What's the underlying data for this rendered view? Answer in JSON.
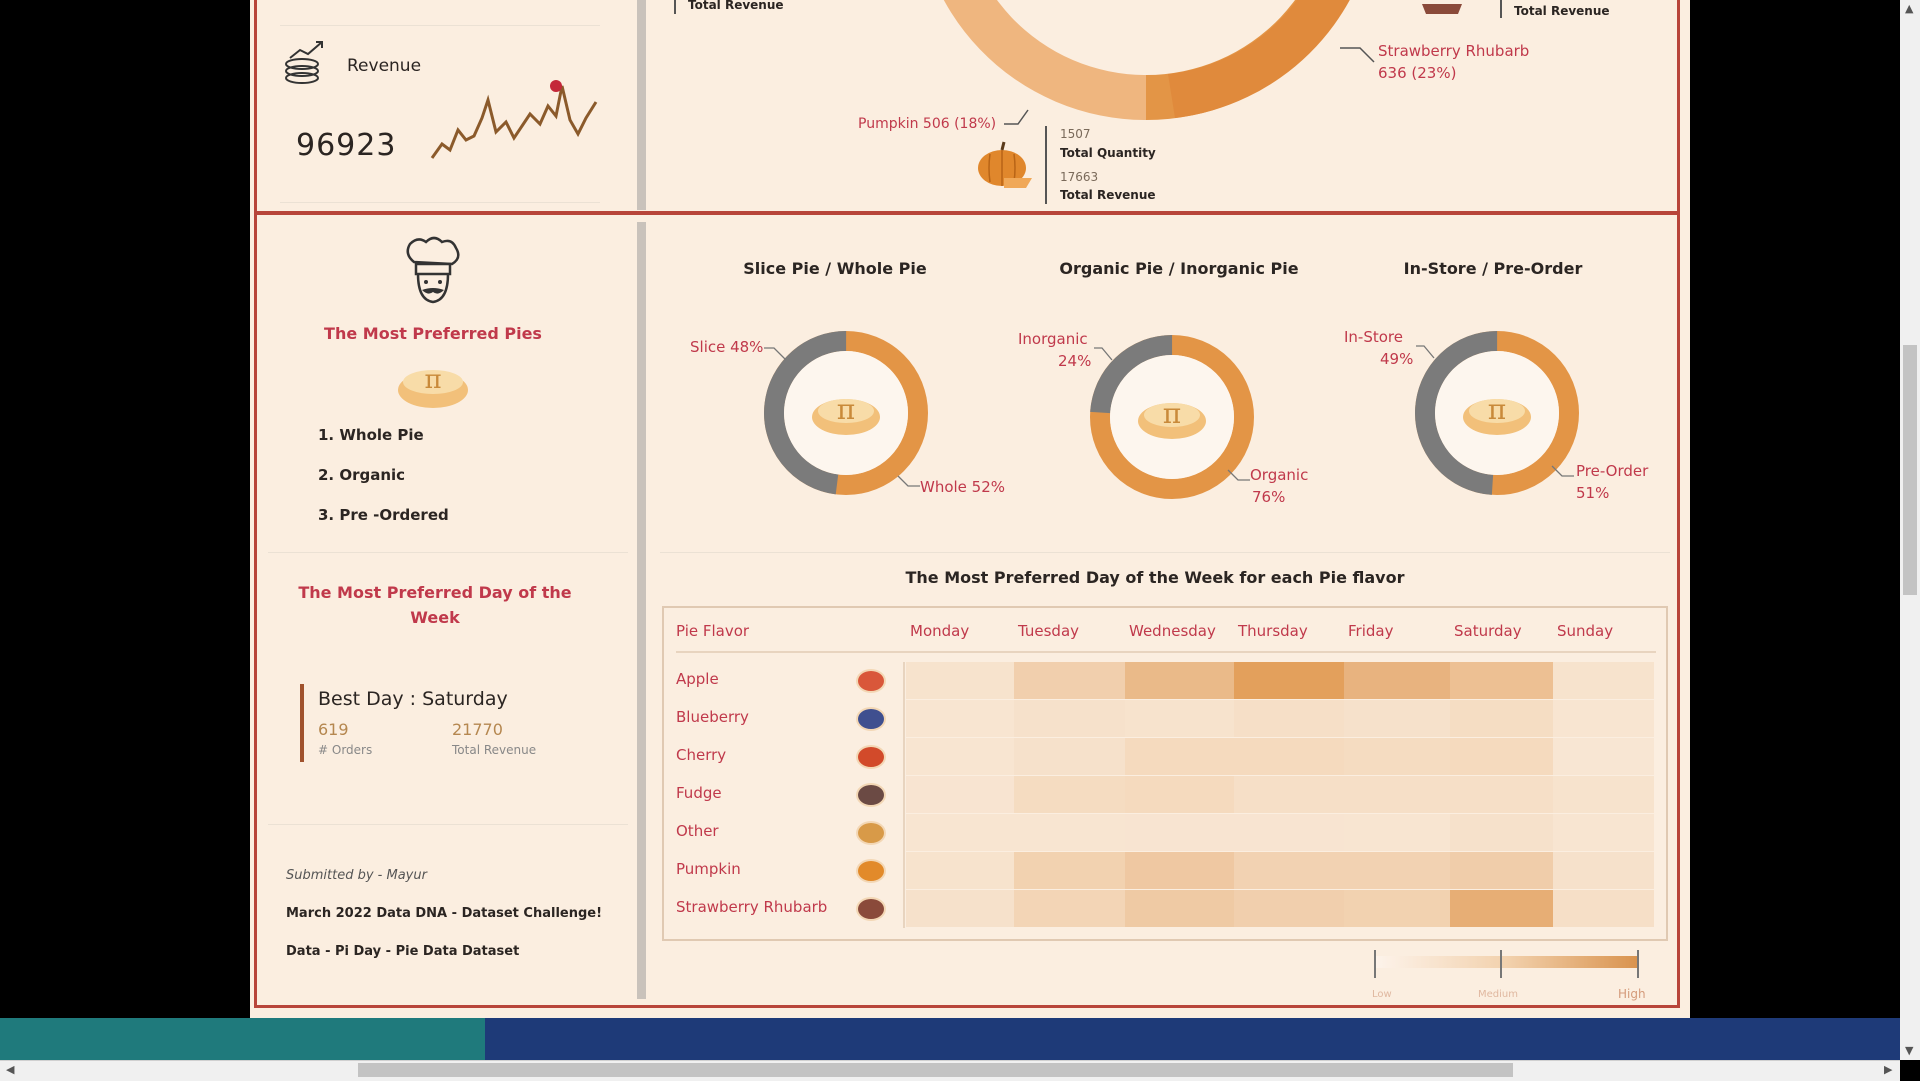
{
  "top": {
    "total_revenue_label_left": "Total Revenue",
    "total_revenue_label_right": "Total Revenue",
    "revenue_kpi_label": "Revenue",
    "revenue_kpi_value": "96923",
    "strawberry_label": "Strawberry Rhubarb",
    "strawberry_value": "636 (23%)",
    "pumpkin_label": "Pumpkin 506 (18%)",
    "pumpkin_qty": "1507",
    "pumpkin_qty_label": "Total Quantity",
    "pumpkin_rev": "17663",
    "pumpkin_rev_label": "Total Revenue"
  },
  "left": {
    "preferred_pies_title": "The Most Preferred Pies",
    "ranks": [
      "1.  Whole Pie",
      "2.  Organic",
      "3.  Pre -Ordered"
    ],
    "preferred_day_title": "The Most Preferred Day of the Week",
    "best_day": "Best Day : Saturday",
    "orders_value": "619",
    "orders_label": "# Orders",
    "revenue_value": "21770",
    "revenue_label": "Total Revenue",
    "submitted_by": "Submitted by  - Mayur",
    "challenge": "March 2022 Data DNA - Dataset Challenge!",
    "dataset": "Data - Pi Day - Pie Data Dataset"
  },
  "donuts": [
    {
      "title": "Slice Pie / Whole Pie",
      "label_a": "Slice 48%",
      "label_b": "Whole 52%",
      "gray_pct": 48
    },
    {
      "title": "Organic Pie / Inorganic Pie",
      "label_a1": "Inorganic",
      "label_a2": "24%",
      "label_b1": "Organic",
      "label_b2": "76%",
      "gray_pct": 24
    },
    {
      "title": "In-Store / Pre-Order",
      "label_a1": "In-Store",
      "label_a2": "49%",
      "label_b1": "Pre-Order",
      "label_b2": "51%",
      "gray_pct": 49
    }
  ],
  "heatmap": {
    "title": "The Most Preferred Day of the Week for each Pie flavor",
    "corner": "Pie Flavor",
    "days": [
      "Monday",
      "Tuesday",
      "Wednesday",
      "Thursday",
      "Friday",
      "Saturday",
      "Sunday"
    ],
    "flavors": [
      "Apple",
      "Blueberry",
      "Cherry",
      "Fudge",
      "Other",
      "Pumpkin",
      "Strawberry Rhubarb"
    ],
    "intensity": [
      [
        0.08,
        0.3,
        0.55,
        0.85,
        0.62,
        0.48,
        0.08
      ],
      [
        0.05,
        0.1,
        0.08,
        0.12,
        0.1,
        0.15,
        0.05
      ],
      [
        0.05,
        0.1,
        0.18,
        0.18,
        0.16,
        0.18,
        0.04
      ],
      [
        0.06,
        0.16,
        0.18,
        0.12,
        0.12,
        0.12,
        0.08
      ],
      [
        0.05,
        0.05,
        0.06,
        0.06,
        0.05,
        0.1,
        0.05
      ],
      [
        0.08,
        0.28,
        0.38,
        0.26,
        0.26,
        0.32,
        0.1
      ],
      [
        0.1,
        0.24,
        0.36,
        0.3,
        0.28,
        0.68,
        0.12
      ]
    ],
    "legend_low": "Low",
    "legend_medium": "Medium",
    "legend_high": "High"
  },
  "colors": {
    "accent_orange": "#e39546",
    "accent_gray": "#7b7b7b",
    "heading_red": "#c0394b",
    "frame_red": "#b8453a",
    "background": "#fbeee0"
  }
}
